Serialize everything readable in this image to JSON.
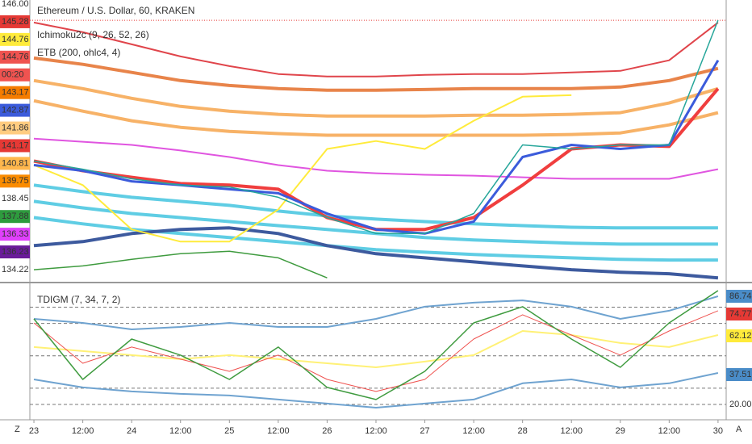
{
  "chart_data": [
    {
      "type": "line",
      "title": "Ethereum / U.S. Dollar, 60, KRAKEN",
      "studies": [
        "Ichimoku2c (9, 26, 52, 26)",
        "ETB (200, ohlc4, 4)"
      ],
      "x": [
        0,
        12,
        24,
        36,
        48,
        60,
        72,
        84,
        96,
        108,
        120,
        132,
        144,
        156,
        168
      ],
      "xlim": [
        -1,
        170
      ],
      "ylim": [
        133.8,
        146.18
      ],
      "xticks": [
        {
          "value": 0,
          "label": "23"
        },
        {
          "value": 12,
          "label": "12:00"
        },
        {
          "value": 24,
          "label": "24"
        },
        {
          "value": 36,
          "label": "12:00"
        },
        {
          "value": 48,
          "label": "25"
        },
        {
          "value": 60,
          "label": "12:00"
        },
        {
          "value": 72,
          "label": "26"
        },
        {
          "value": 84,
          "label": "12:00"
        },
        {
          "value": 96,
          "label": "27"
        },
        {
          "value": 108,
          "label": "12:00"
        },
        {
          "value": 120,
          "label": "28"
        },
        {
          "value": 132,
          "label": "12:00"
        },
        {
          "value": 144,
          "label": "29"
        },
        {
          "value": 156,
          "label": "12:00"
        },
        {
          "value": 168,
          "label": "30"
        }
      ],
      "price_line": 145.28,
      "scale_labels": [
        {
          "label": "146.00",
          "bg": null
        },
        {
          "label": "145.28",
          "bg": "#e53935"
        },
        {
          "label": "144.76",
          "bg": "#ffeb3b"
        },
        {
          "label": "144.76",
          "bg": "#ef5350"
        },
        {
          "label": "00:20",
          "bg": "#ef5350"
        },
        {
          "label": "143.17",
          "bg": "#f57c00"
        },
        {
          "label": "142.87",
          "bg": "#3b5bdb"
        },
        {
          "label": "141.86",
          "bg": "#ffcc80"
        },
        {
          "label": "141.17",
          "bg": "#e53935"
        },
        {
          "label": "140.81",
          "bg": "#ffb74d"
        },
        {
          "label": "139.75",
          "bg": "#fb8c00"
        },
        {
          "label": "138.45",
          "bg": null
        },
        {
          "label": "137.88",
          "bg": "#2e9b3e"
        },
        {
          "label": "136.33",
          "bg": "#e040fb"
        },
        {
          "label": "136.23",
          "bg": "#6a1b9a"
        },
        {
          "label": "134.22",
          "bg": null
        }
      ],
      "series": [
        {
          "color": "#e0454b",
          "width": 2,
          "values": [
            145.18,
            144.75,
            144.21,
            143.67,
            143.24,
            142.89,
            142.78,
            142.78,
            142.85,
            142.89,
            142.89,
            142.96,
            143.03,
            143.5,
            145.18
          ]
        },
        {
          "color": "#e8844a",
          "width": 4,
          "values": [
            143.6,
            143.32,
            142.96,
            142.6,
            142.38,
            142.24,
            142.17,
            142.17,
            142.2,
            142.24,
            142.24,
            142.24,
            142.31,
            142.6,
            143.14
          ]
        },
        {
          "color": "#f7b267",
          "width": 4,
          "values": [
            142.6,
            142.24,
            141.81,
            141.45,
            141.24,
            141.1,
            141.02,
            141.02,
            141.02,
            141.06,
            141.06,
            141.1,
            141.17,
            141.6,
            142.24
          ]
        },
        {
          "color": "#f7b267",
          "width": 4,
          "values": [
            141.7,
            141.24,
            140.81,
            140.52,
            140.34,
            140.24,
            140.17,
            140.17,
            140.17,
            140.17,
            140.17,
            140.2,
            140.27,
            140.63,
            141.17
          ]
        },
        {
          "color": "#e055e0",
          "width": 2,
          "values": [
            140.02,
            139.88,
            139.74,
            139.49,
            139.2,
            138.84,
            138.59,
            138.48,
            138.41,
            138.37,
            138.3,
            138.23,
            138.23,
            138.23,
            138.66
          ]
        },
        {
          "color": "#5fcde4",
          "width": 4,
          "values": [
            137.95,
            137.66,
            137.41,
            137.23,
            137.05,
            136.8,
            136.58,
            136.44,
            136.33,
            136.23,
            136.15,
            136.08,
            136.05,
            136.05,
            136.05
          ]
        },
        {
          "color": "#5fcde4",
          "width": 4,
          "values": [
            137.23,
            136.94,
            136.69,
            136.51,
            136.33,
            136.15,
            135.98,
            135.8,
            135.62,
            135.51,
            135.44,
            135.37,
            135.33,
            135.33,
            135.33
          ]
        },
        {
          "color": "#5fcde4",
          "width": 4,
          "values": [
            136.51,
            136.23,
            135.98,
            135.8,
            135.62,
            135.44,
            135.26,
            135.08,
            134.97,
            134.87,
            134.79,
            134.72,
            134.65,
            134.62,
            134.62
          ]
        },
        {
          "color": "#3d5a9e",
          "width": 4,
          "values": [
            135.26,
            135.44,
            135.8,
            135.98,
            136.05,
            135.8,
            135.26,
            134.9,
            134.72,
            134.54,
            134.36,
            134.19,
            134.08,
            134.01,
            133.83
          ]
        },
        {
          "color": "#3f9b3f",
          "width": 1.5,
          "values": [
            134.19,
            134.36,
            134.65,
            134.9,
            135.01,
            134.72,
            133.83,
            null,
            null,
            null,
            null,
            null,
            null,
            null,
            null
          ]
        },
        {
          "color": "#ffeb3b",
          "width": 2,
          "values": [
            138.84,
            137.95,
            135.98,
            135.44,
            135.44,
            136.87,
            139.56,
            139.91,
            139.56,
            140.81,
            141.88,
            141.95,
            null,
            null,
            null
          ]
        },
        {
          "color": "#f03e3e",
          "width": 4,
          "values": [
            139.02,
            138.59,
            138.3,
            138.02,
            137.95,
            137.77,
            136.51,
            135.98,
            135.98,
            136.51,
            137.95,
            139.56,
            139.74,
            139.67,
            142.24
          ]
        },
        {
          "color": "#3b5bdb",
          "width": 3,
          "values": [
            138.84,
            138.59,
            138.12,
            137.95,
            137.77,
            137.59,
            136.69,
            135.98,
            135.8,
            136.33,
            139.2,
            139.74,
            139.56,
            139.74,
            143.5
          ]
        },
        {
          "color": "#26a69a",
          "width": 1.5,
          "values": [
            139.02,
            138.66,
            138.23,
            137.95,
            137.87,
            137.41,
            136.51,
            135.8,
            135.8,
            136.69,
            139.74,
            139.56,
            139.74,
            139.74,
            145.28
          ]
        }
      ]
    },
    {
      "type": "line",
      "title": "TDIGM (7, 34, 7, 2)",
      "x": [
        0,
        12,
        24,
        36,
        48,
        60,
        72,
        84,
        96,
        108,
        120,
        132,
        144,
        156,
        168
      ],
      "xlim": [
        -1,
        170
      ],
      "ylim": [
        11.5,
        94.2
      ],
      "levels": [
        80,
        70,
        50,
        30,
        20
      ],
      "scale_labels": [
        {
          "label": "86.74",
          "bg": "#4a8cc8"
        },
        {
          "label": "74.77",
          "bg": "#e53935"
        },
        {
          "label": "62.12",
          "bg": "#ffeb3b"
        },
        {
          "label": "37.51",
          "bg": "#4a8cc8"
        },
        {
          "label": "20.00",
          "bg": null
        }
      ],
      "series": [
        {
          "color": "#6fa3d0",
          "width": 2,
          "values": [
            72.8,
            70.3,
            66.3,
            67.8,
            70.3,
            67.8,
            67.8,
            72.8,
            80.3,
            82.8,
            84.2,
            80.3,
            72.8,
            77.8,
            86.74
          ]
        },
        {
          "color": "#6fa3d0",
          "width": 2,
          "values": [
            35.4,
            30.5,
            28,
            26.5,
            25.5,
            23,
            20.5,
            18,
            20.5,
            23,
            33,
            35.4,
            30.5,
            33,
            39.4
          ]
        },
        {
          "color": "#fff176",
          "width": 2,
          "values": [
            55.4,
            52.9,
            50.4,
            47.9,
            50.4,
            47.9,
            45.4,
            42.9,
            46.4,
            50.4,
            65.3,
            62.8,
            57.9,
            55.4,
            62.8
          ]
        },
        {
          "color": "#ef5350",
          "width": 1,
          "values": [
            70.3,
            45.4,
            55.4,
            47.9,
            40.4,
            50.4,
            35.4,
            28,
            35.4,
            60.3,
            75.3,
            62.8,
            50.4,
            65.3,
            77.8
          ]
        },
        {
          "color": "#3f9b3f",
          "width": 1.5,
          "values": [
            72.8,
            35.4,
            60.3,
            50.4,
            35.4,
            55.4,
            30.5,
            23,
            40.4,
            70.3,
            80.3,
            60.3,
            42.9,
            70.3,
            90.2
          ]
        }
      ]
    }
  ],
  "corner_left": "Z",
  "corner_right": "A"
}
